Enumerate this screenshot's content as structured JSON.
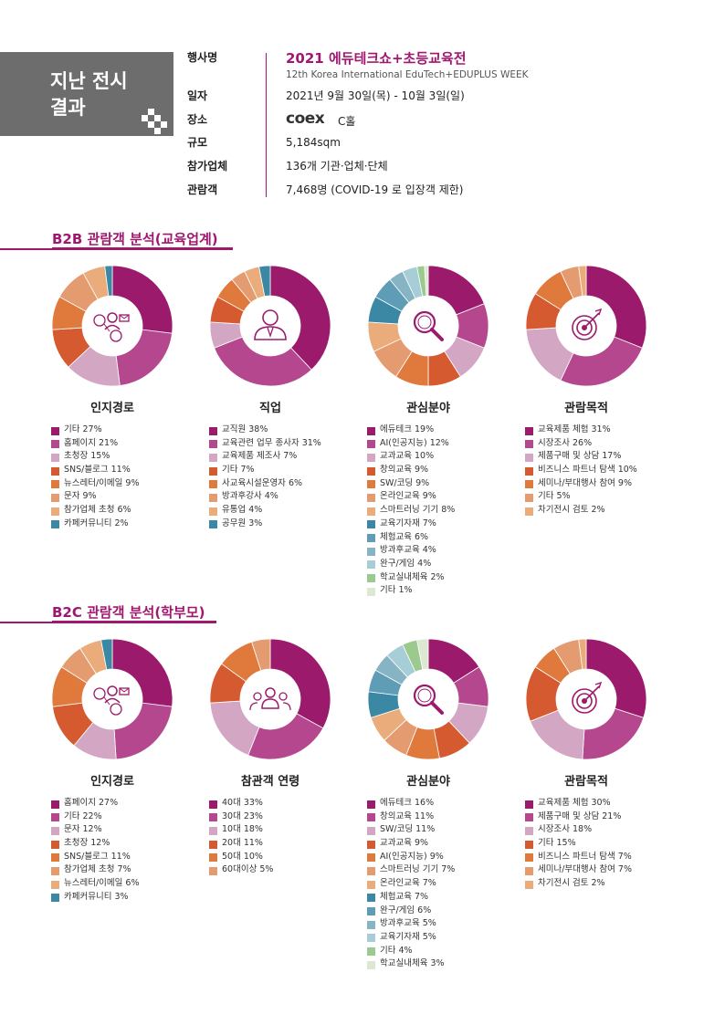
{
  "header": {
    "title": "지난 전시\n결과",
    "event_title": "2021 에듀테크쇼+초등교육전",
    "event_subtitle": "12th Korea International EduTech+EDUPLUS WEEK",
    "rows": [
      {
        "key": "행사명",
        "value": ""
      },
      {
        "key": "일자",
        "value": "2021년 9월 30일(목) - 10월 3일(일)"
      },
      {
        "key": "장소",
        "value": ""
      },
      {
        "key": "규모",
        "value": "5,184sqm"
      },
      {
        "key": "참가업체",
        "value": "136개 기관·업체·단체"
      },
      {
        "key": "관람객",
        "value": "7,468명 (COVID-19 로 입장객 제한)"
      }
    ],
    "venue_logo": "coex",
    "venue_hall": "C홀"
  },
  "colors": [
    "#9c1a6c",
    "#b5478f",
    "#d3a7c4",
    "#d65a30",
    "#e07a3c",
    "#e39b6f",
    "#e9ac7a",
    "#3a88a3",
    "#5f9cb5",
    "#87b4c4",
    "#a7cdd6",
    "#9cc98e",
    "#dde8d3"
  ],
  "sections": [
    {
      "title": "B2B 관람객 분석(교육업계)"
    },
    {
      "title": "B2C 관람객 분석(학부모)"
    }
  ],
  "chart_data": [
    {
      "type": "pie",
      "section": 0,
      "title": "인지경로",
      "icon": "people-network-icon",
      "labels": [
        "기타 27%",
        "홈페이지 21%",
        "초청장 15%",
        "SNS/블로그 11%",
        "뉴스레터/이메일 9%",
        "문자 9%",
        "참가업체 초청 6%",
        "카페커뮤니티 2%"
      ],
      "values": [
        27,
        21,
        15,
        11,
        9,
        9,
        6,
        2
      ],
      "colors": [
        "#9c1a6c",
        "#b5478f",
        "#d3a7c4",
        "#d65a30",
        "#e07a3c",
        "#e39b6f",
        "#e9ac7a",
        "#3a88a3"
      ]
    },
    {
      "type": "pie",
      "section": 0,
      "title": "직업",
      "icon": "person-icon",
      "labels": [
        "교직원 38%",
        "교육관련 업무 종사자 31%",
        "교육제품 제조사 7%",
        "기타 7%",
        "사교육시설운영자 6%",
        "방과후강사 4%",
        "유통업 4%",
        "공무원 3%"
      ],
      "values": [
        38,
        31,
        7,
        7,
        6,
        4,
        4,
        3
      ],
      "colors": [
        "#9c1a6c",
        "#b5478f",
        "#d3a7c4",
        "#d65a30",
        "#e07a3c",
        "#e39b6f",
        "#e9ac7a",
        "#3a88a3"
      ]
    },
    {
      "type": "pie",
      "section": 0,
      "title": "관심분야",
      "icon": "magnifier-icon",
      "labels": [
        "에듀테크 19%",
        "AI(인공지능) 12%",
        "교과교육 10%",
        "창의교육 9%",
        "SW/코딩 9%",
        "온라인교육 9%",
        "스마트러닝 기기 8%",
        "교육기자재 7%",
        "체험교육 6%",
        "방과후교육 4%",
        "완구/게임 4%",
        "학교실내체육 2%",
        "기타 1%"
      ],
      "values": [
        19,
        12,
        10,
        9,
        9,
        9,
        8,
        7,
        6,
        4,
        4,
        2,
        1
      ],
      "colors": [
        "#9c1a6c",
        "#b5478f",
        "#d3a7c4",
        "#d65a30",
        "#e07a3c",
        "#e39b6f",
        "#e9ac7a",
        "#3a88a3",
        "#5f9cb5",
        "#87b4c4",
        "#a7cdd6",
        "#9cc98e",
        "#dde8d3"
      ]
    },
    {
      "type": "pie",
      "section": 0,
      "title": "관람목적",
      "icon": "target-icon",
      "labels": [
        "교육제품 체험 31%",
        "시장조사 26%",
        "제품구매 및 상담 17%",
        "비즈니스 파트너 탐색 10%",
        "세미나/부대행사 참여 9%",
        "기타 5%",
        "차기전시 검토 2%"
      ],
      "values": [
        31,
        26,
        17,
        10,
        9,
        5,
        2
      ],
      "colors": [
        "#9c1a6c",
        "#b5478f",
        "#d3a7c4",
        "#d65a30",
        "#e07a3c",
        "#e39b6f",
        "#e9ac7a"
      ]
    },
    {
      "type": "pie",
      "section": 1,
      "title": "인지경로",
      "icon": "people-network-icon",
      "labels": [
        "홈페이지 27%",
        "기타 22%",
        "문자 12%",
        "초청장 12%",
        "SNS/블로그 11%",
        "참가업체 초청 7%",
        "뉴스레터/이메일 6%",
        "카페커뮤니티 3%"
      ],
      "values": [
        27,
        22,
        12,
        12,
        11,
        7,
        6,
        3
      ],
      "colors": [
        "#9c1a6c",
        "#b5478f",
        "#d3a7c4",
        "#d65a30",
        "#e07a3c",
        "#e39b6f",
        "#e9ac7a",
        "#3a88a3"
      ]
    },
    {
      "type": "pie",
      "section": 1,
      "title": "참관객 연령",
      "icon": "group-icon",
      "labels": [
        "40대 33%",
        "30대 23%",
        "10대 18%",
        "20대 11%",
        "50대 10%",
        "60대이상 5%"
      ],
      "values": [
        33,
        23,
        18,
        11,
        10,
        5
      ],
      "colors": [
        "#9c1a6c",
        "#b5478f",
        "#d3a7c4",
        "#d65a30",
        "#e07a3c",
        "#e39b6f"
      ]
    },
    {
      "type": "pie",
      "section": 1,
      "title": "관심분야",
      "icon": "magnifier-icon",
      "labels": [
        "에듀테크 16%",
        "창의교육 11%",
        "SW/코딩 11%",
        "교과교육 9%",
        "AI(인공지능) 9%",
        "스마트러닝 기기 7%",
        "온라인교육 7%",
        "체험교육 7%",
        "완구/게임 6%",
        "방과후교육 5%",
        "교육기자재 5%",
        "기타 4%",
        "학교실내체육 3%"
      ],
      "values": [
        16,
        11,
        11,
        9,
        9,
        7,
        7,
        7,
        6,
        5,
        5,
        4,
        3
      ],
      "colors": [
        "#9c1a6c",
        "#b5478f",
        "#d3a7c4",
        "#d65a30",
        "#e07a3c",
        "#e39b6f",
        "#e9ac7a",
        "#3a88a3",
        "#5f9cb5",
        "#87b4c4",
        "#a7cdd6",
        "#9cc98e",
        "#dde8d3"
      ]
    },
    {
      "type": "pie",
      "section": 1,
      "title": "관람목적",
      "icon": "target-icon",
      "labels": [
        "교육제품 체험 30%",
        "제품구매 및 상담 21%",
        "시장조사 18%",
        "기타 15%",
        "비즈니스 파트너 탐색 7%",
        "세미나/부대행사 참여 7%",
        "차기전시 검토 2%"
      ],
      "values": [
        30,
        21,
        18,
        15,
        7,
        7,
        2
      ],
      "colors": [
        "#9c1a6c",
        "#b5478f",
        "#d3a7c4",
        "#d65a30",
        "#e07a3c",
        "#e39b6f",
        "#e9ac7a"
      ]
    }
  ]
}
